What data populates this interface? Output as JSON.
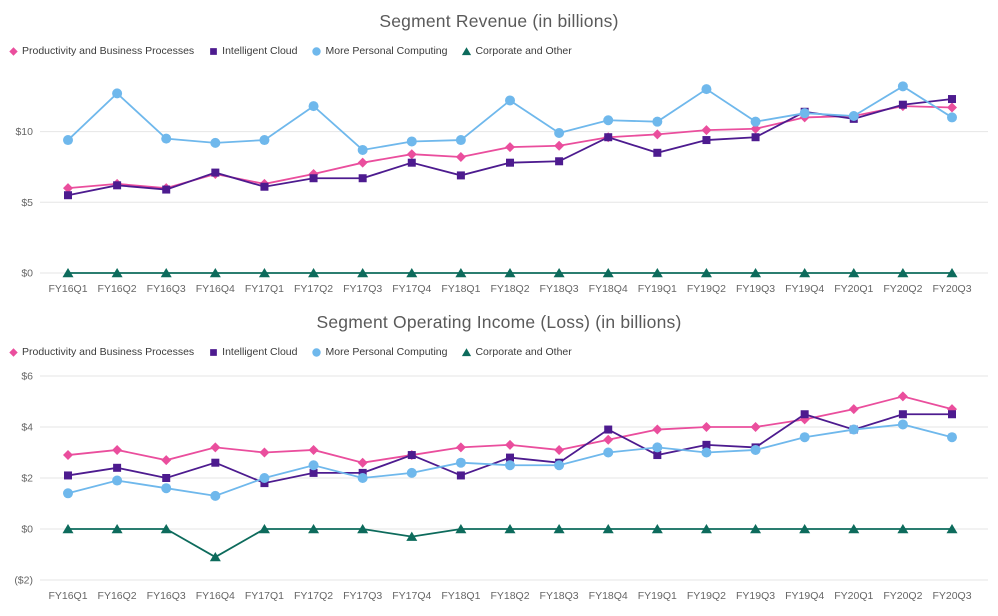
{
  "page": {
    "background": "#ffffff"
  },
  "colors": {
    "grid": "#e6e6e6",
    "axis_text": "#666666",
    "title_text": "#5a5a5a",
    "legend_text": "#3b3b3b"
  },
  "chart_data": [
    {
      "type": "line",
      "title": "Segment Revenue (in billions)",
      "legend_position": "top-left",
      "grid": true,
      "xlabel": "",
      "ylabel": "",
      "ylim": [
        0,
        14
      ],
      "yticks": [
        0,
        5,
        10
      ],
      "ytick_labels": [
        "$0",
        "$5",
        "$10"
      ],
      "categories": [
        "FY16Q1",
        "FY16Q2",
        "FY16Q3",
        "FY16Q4",
        "FY17Q1",
        "FY17Q2",
        "FY17Q3",
        "FY17Q4",
        "FY18Q1",
        "FY18Q2",
        "FY18Q3",
        "FY18Q4",
        "FY19Q1",
        "FY19Q2",
        "FY19Q3",
        "FY19Q4",
        "FY20Q1",
        "FY20Q2",
        "FY20Q3"
      ],
      "series": [
        {
          "name": "Productivity and Business Processes",
          "marker": "diamond",
          "color": "#ea4e9d",
          "values": [
            6.0,
            6.3,
            6.0,
            7.0,
            6.3,
            7.0,
            7.8,
            8.4,
            8.2,
            8.9,
            9.0,
            9.6,
            9.8,
            10.1,
            10.2,
            11.0,
            11.1,
            11.8,
            11.7
          ]
        },
        {
          "name": "Intelligent Cloud",
          "marker": "square",
          "color": "#4d1b8f",
          "values": [
            5.5,
            6.2,
            5.9,
            7.1,
            6.1,
            6.7,
            6.7,
            7.8,
            6.9,
            7.8,
            7.9,
            9.6,
            8.5,
            9.4,
            9.6,
            11.4,
            10.9,
            11.9,
            12.3
          ]
        },
        {
          "name": "More Personal Computing",
          "marker": "circle",
          "color": "#6fb8ec",
          "values": [
            9.4,
            12.7,
            9.5,
            9.2,
            9.4,
            11.8,
            8.7,
            9.3,
            9.4,
            12.2,
            9.9,
            10.8,
            10.7,
            13.0,
            10.7,
            11.3,
            11.1,
            13.2,
            11.0
          ]
        },
        {
          "name": "Corporate and Other",
          "marker": "triangle",
          "color": "#0d6b5c",
          "values": [
            0,
            0,
            0,
            0,
            0,
            0,
            0,
            0,
            0,
            0,
            0,
            0,
            0,
            0,
            0,
            0,
            0,
            0,
            0
          ]
        }
      ]
    },
    {
      "type": "line",
      "title": "Segment Operating Income (Loss) (in billions)",
      "legend_position": "top-left",
      "grid": true,
      "xlabel": "",
      "ylabel": "",
      "ylim": [
        -2,
        6
      ],
      "yticks": [
        -2,
        0,
        2,
        4,
        6
      ],
      "ytick_labels": [
        "($2)",
        "$0",
        "$2",
        "$4",
        "$6"
      ],
      "categories": [
        "FY16Q1",
        "FY16Q2",
        "FY16Q3",
        "FY16Q4",
        "FY17Q1",
        "FY17Q2",
        "FY17Q3",
        "FY17Q4",
        "FY18Q1",
        "FY18Q2",
        "FY18Q3",
        "FY18Q4",
        "FY19Q1",
        "FY19Q2",
        "FY19Q3",
        "FY19Q4",
        "FY20Q1",
        "FY20Q2",
        "FY20Q3"
      ],
      "series": [
        {
          "name": "Productivity and Business Processes",
          "marker": "diamond",
          "color": "#ea4e9d",
          "values": [
            2.9,
            3.1,
            2.7,
            3.2,
            3.0,
            3.1,
            2.6,
            2.9,
            3.2,
            3.3,
            3.1,
            3.5,
            3.9,
            4.0,
            4.0,
            4.3,
            4.7,
            5.2,
            4.7
          ]
        },
        {
          "name": "Intelligent Cloud",
          "marker": "square",
          "color": "#4d1b8f",
          "values": [
            2.1,
            2.4,
            2.0,
            2.6,
            1.8,
            2.2,
            2.2,
            2.9,
            2.1,
            2.8,
            2.6,
            3.9,
            2.9,
            3.3,
            3.2,
            4.5,
            3.9,
            4.5,
            4.5
          ]
        },
        {
          "name": "More Personal Computing",
          "marker": "circle",
          "color": "#6fb8ec",
          "values": [
            1.4,
            1.9,
            1.6,
            1.3,
            2.0,
            2.5,
            2.0,
            2.2,
            2.6,
            2.5,
            2.5,
            3.0,
            3.2,
            3.0,
            3.1,
            3.6,
            3.9,
            4.1,
            3.6
          ]
        },
        {
          "name": "Corporate and Other",
          "marker": "triangle",
          "color": "#0d6b5c",
          "values": [
            0,
            0,
            0,
            -1.1,
            0,
            0,
            0,
            -0.3,
            0,
            0,
            0,
            0,
            0,
            0,
            0,
            0,
            0,
            0,
            0
          ]
        }
      ]
    }
  ]
}
